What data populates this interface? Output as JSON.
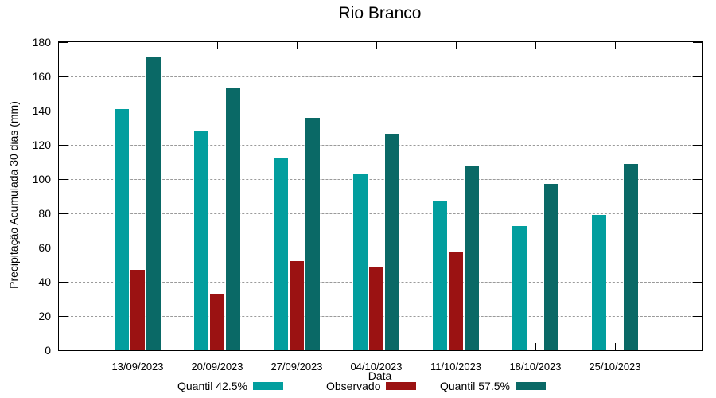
{
  "chart_data": {
    "type": "bar",
    "title": "Rio Branco",
    "xlabel": "Data",
    "ylabel": "Precipitação Acumulada 30 dias (mm)",
    "ylim": [
      0,
      180
    ],
    "ytick_step": 20,
    "grid": true,
    "legend_position": "bottom",
    "categories": [
      "13/09/2023",
      "20/09/2023",
      "27/09/2023",
      "04/10/2023",
      "11/10/2023",
      "18/10/2023",
      "25/10/2023"
    ],
    "series": [
      {
        "name": "Quantil 42.5%",
        "color": "#029E9E",
        "values": [
          141,
          128,
          112.5,
          103,
          87,
          72.5,
          79
        ]
      },
      {
        "name": "Observado",
        "color": "#9B1212",
        "values": [
          47,
          33,
          52,
          48.5,
          57.5,
          null,
          null
        ]
      },
      {
        "name": "Quantil 57.5%",
        "color": "#0A6966",
        "values": [
          171,
          153.5,
          136,
          126.5,
          108,
          97,
          109
        ]
      }
    ]
  }
}
